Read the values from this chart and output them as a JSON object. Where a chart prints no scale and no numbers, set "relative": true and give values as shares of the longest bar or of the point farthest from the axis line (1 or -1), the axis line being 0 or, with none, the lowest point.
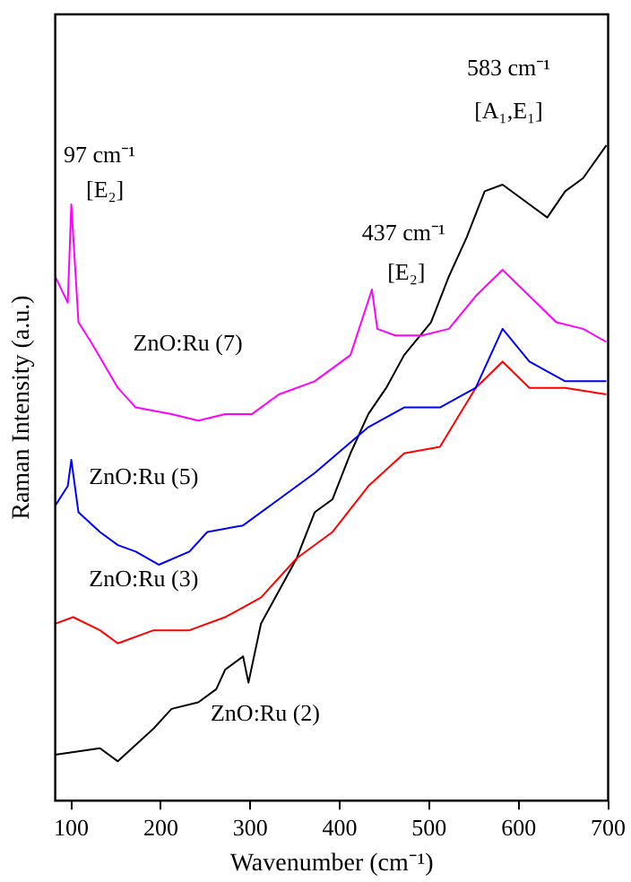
{
  "chart_data": {
    "type": "line",
    "relative": true,
    "xlabel": "Wavenumber (cm⁻¹)",
    "ylabel": "Raman Intensity (a.u.)",
    "xlim": [
      82,
      700
    ],
    "xticks": [
      100,
      200,
      300,
      400,
      500,
      600,
      700
    ],
    "grid": false,
    "legend": false,
    "marker": "none",
    "line_style": "solid",
    "series": [
      {
        "color": "#ff00ff",
        "x": [
          82,
          96,
          100,
          108,
          122,
          152,
          172,
          212,
          242,
          272,
          302,
          332,
          372,
          412,
          436,
          442,
          462,
          492,
          522,
          552,
          582,
          612,
          642,
          672,
          698
        ],
        "values": [
          0.8,
          0.76,
          0.91,
          0.73,
          0.7,
          0.63,
          0.6,
          0.59,
          0.58,
          0.59,
          0.59,
          0.62,
          0.64,
          0.68,
          0.78,
          0.72,
          0.71,
          0.71,
          0.72,
          0.77,
          0.81,
          0.77,
          0.73,
          0.72,
          0.7
        ]
      },
      {
        "color": "#0000ff",
        "x": [
          82,
          96,
          100,
          108,
          132,
          152,
          172,
          198,
          232,
          252,
          292,
          332,
          372,
          432,
          472,
          512,
          552,
          582,
          612,
          652,
          698
        ],
        "values": [
          0.45,
          0.48,
          0.52,
          0.44,
          0.41,
          0.39,
          0.38,
          0.36,
          0.38,
          0.41,
          0.42,
          0.46,
          0.5,
          0.57,
          0.6,
          0.6,
          0.63,
          0.72,
          0.67,
          0.64,
          0.64
        ]
      },
      {
        "color": "#ff0000",
        "x": [
          82,
          102,
          132,
          152,
          192,
          232,
          272,
          312,
          352,
          392,
          432,
          472,
          512,
          552,
          582,
          612,
          652,
          698
        ],
        "values": [
          0.27,
          0.28,
          0.26,
          0.24,
          0.26,
          0.26,
          0.28,
          0.31,
          0.37,
          0.41,
          0.48,
          0.53,
          0.54,
          0.63,
          0.67,
          0.63,
          0.63,
          0.62
        ]
      },
      {
        "color": "#000000",
        "x": [
          82,
          132,
          152,
          192,
          212,
          242,
          262,
          272,
          292,
          298,
          312,
          332,
          352,
          372,
          392,
          412,
          432,
          452,
          472,
          502,
          522,
          542,
          562,
          582,
          612,
          632,
          652,
          672,
          698
        ],
        "values": [
          0.07,
          0.08,
          0.06,
          0.11,
          0.14,
          0.15,
          0.17,
          0.2,
          0.22,
          0.18,
          0.27,
          0.32,
          0.37,
          0.44,
          0.46,
          0.53,
          0.59,
          0.63,
          0.68,
          0.73,
          0.8,
          0.86,
          0.93,
          0.94,
          0.91,
          0.89,
          0.93,
          0.95,
          1
        ]
      }
    ],
    "annotations": [
      "97 cm⁻¹",
      "[E₂]",
      "437 cm⁻¹",
      "[E₂]",
      "583 cm⁻¹",
      "[A₁,E₁]",
      "ZnO:Ru (7)",
      "ZnO:Ru (5)",
      "ZnO:Ru (3)",
      "ZnO:Ru (2)"
    ]
  }
}
